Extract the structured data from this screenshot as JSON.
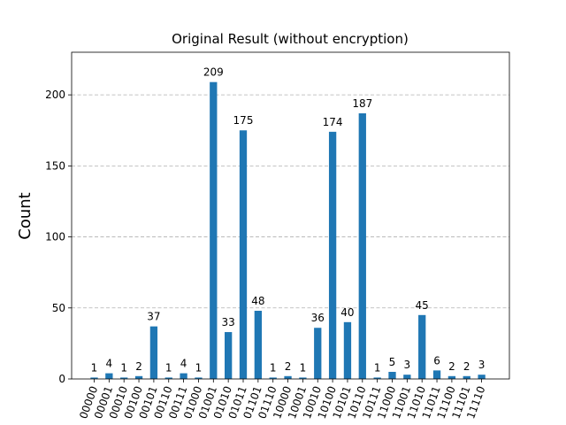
{
  "chart_data": {
    "type": "bar",
    "title": "Original Result (without encryption)",
    "xlabel": "",
    "ylabel": "Count",
    "ylim": [
      0,
      230
    ],
    "yticks": [
      0,
      50,
      100,
      150,
      200
    ],
    "grid": "y-dashed",
    "bar_color": "#1f77b4",
    "categories": [
      "00000",
      "00001",
      "00010",
      "00100",
      "00101",
      "00110",
      "00111",
      "01000",
      "01001",
      "01010",
      "01011",
      "01101",
      "01110",
      "10000",
      "10001",
      "10010",
      "10100",
      "10101",
      "10110",
      "10111",
      "11000",
      "11001",
      "11010",
      "11011",
      "11100",
      "11101",
      "11110"
    ],
    "values": [
      1,
      4,
      1,
      2,
      37,
      1,
      4,
      1,
      209,
      33,
      175,
      48,
      1,
      2,
      1,
      36,
      174,
      40,
      187,
      1,
      5,
      3,
      45,
      6,
      2,
      2,
      3
    ]
  }
}
